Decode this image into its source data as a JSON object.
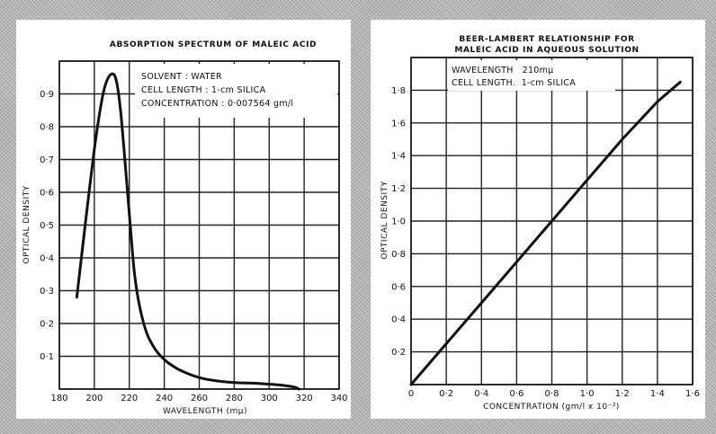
{
  "chart_data": [
    {
      "type": "line",
      "title": "ABSORPTION SPECTRUM OF MALEIC ACID",
      "xlabel": "WAVELENGTH (mμ)",
      "ylabel": "OPTICAL DENSITY",
      "xlim": [
        180,
        340
      ],
      "ylim": [
        0,
        1.0
      ],
      "grid": true,
      "x_tick_labels": [
        "180",
        "200",
        "220",
        "240",
        "260",
        "280",
        "300",
        "320",
        "340"
      ],
      "y_tick_labels": [
        "0·1",
        "0·2",
        "0·3",
        "0·4",
        "0·5",
        "0·6",
        "0·7",
        "0·8",
        "0·9"
      ],
      "annotations": [
        "SOLVENT : WATER",
        "CELL LENGTH : 1-cm SILICA",
        "CONCENTRATION : 0·007564 gm/l"
      ],
      "series": [
        {
          "x": [
            190,
            193,
            197,
            201,
            205,
            208,
            211,
            213,
            215,
            217,
            219,
            221,
            223,
            226,
            230,
            235,
            240,
            245,
            250,
            260,
            270,
            280,
            290,
            300,
            305,
            310,
            315,
            317
          ],
          "y": [
            0.28,
            0.42,
            0.6,
            0.77,
            0.9,
            0.95,
            0.96,
            0.93,
            0.85,
            0.73,
            0.6,
            0.47,
            0.35,
            0.25,
            0.17,
            0.12,
            0.09,
            0.07,
            0.055,
            0.035,
            0.025,
            0.02,
            0.018,
            0.015,
            0.013,
            0.01,
            0.005,
            0.0
          ]
        }
      ]
    },
    {
      "type": "line",
      "title": "BEER-LAMBERT RELATIONSHIP FOR",
      "subtitle": "MALEIC ACID IN AQUEOUS SOLUTION",
      "xlabel": "CONCENTRATION (gm/l x 10⁻²)",
      "ylabel": "OPTICAL DENSITY",
      "xlim": [
        0,
        1.6
      ],
      "ylim": [
        0,
        2.0
      ],
      "grid": true,
      "x_tick_labels": [
        "0",
        "0·2",
        "0·4",
        "0·6",
        "0·8",
        "1·0",
        "1·2",
        "1·4",
        "1·6"
      ],
      "y_tick_labels": [
        "0·2",
        "0·4",
        "0·6",
        "0·8",
        "1·0",
        "1·2",
        "1·4",
        "1·6",
        "1·8"
      ],
      "annotations": [
        "WAVELENGTH   210mμ",
        "CELL LENGTH.  1-cm SILICA"
      ],
      "series": [
        {
          "x": [
            0,
            0.2,
            0.4,
            0.6,
            0.8,
            1.0,
            1.2,
            1.4,
            1.53
          ],
          "y": [
            0.0,
            0.25,
            0.5,
            0.75,
            1.0,
            1.25,
            1.5,
            1.73,
            1.85
          ]
        }
      ]
    }
  ]
}
